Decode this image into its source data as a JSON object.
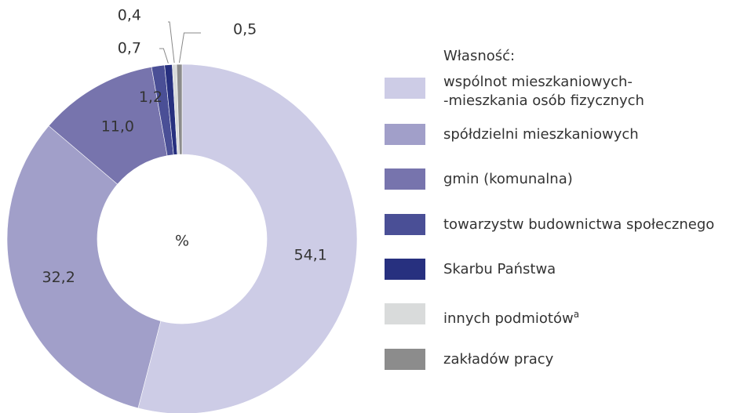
{
  "chart_data": {
    "type": "pie",
    "donut": true,
    "center_label": "%",
    "legend_title": "Własność:",
    "categories": [
      "wspólnot mieszkaniowych-\n-mieszkania osób fizycznych",
      "spółdzielni mieszkaniowych",
      "gmin (komunalna)",
      "towarzystw budownictwa społecznego",
      "Skarbu Państwa",
      "innych podmiotów",
      "zakładów pracy"
    ],
    "superscripts": [
      null,
      null,
      null,
      null,
      null,
      "a",
      null
    ],
    "values": [
      54.1,
      32.2,
      11.0,
      1.2,
      0.7,
      0.4,
      0.5
    ],
    "value_labels": [
      "54,1",
      "32,2",
      "11,0",
      "1,2",
      "0,7",
      "0,4",
      "0,5"
    ],
    "colors": [
      "#cdcce6",
      "#a19fc9",
      "#7774ad",
      "#4a4f96",
      "#27307f",
      "#d9dbdb",
      "#8c8c8c"
    ]
  }
}
